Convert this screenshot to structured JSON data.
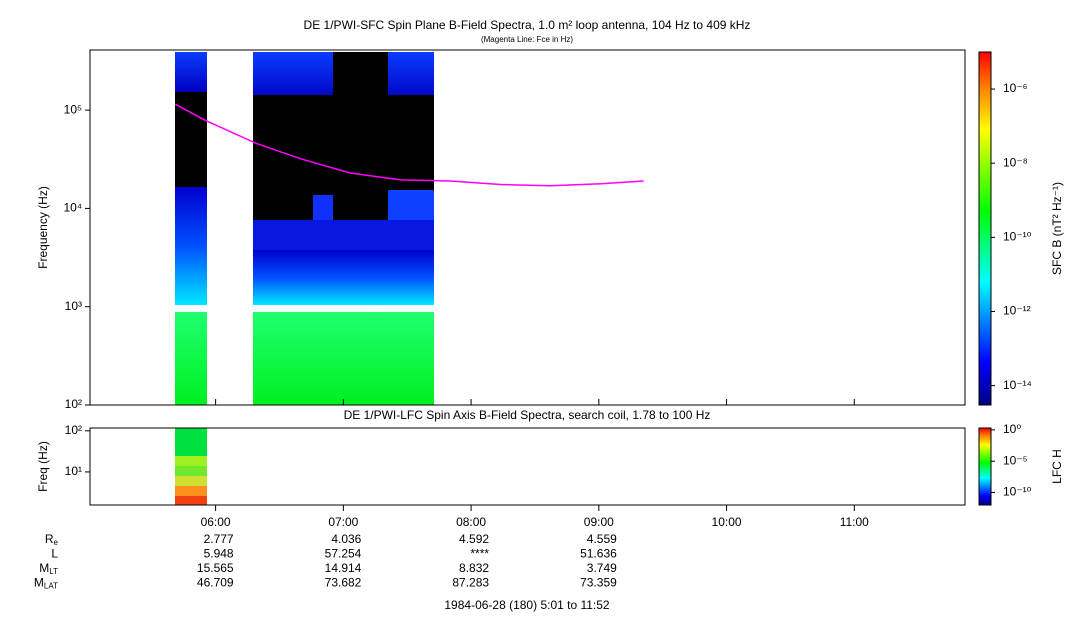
{
  "chart_data": [
    {
      "type": "spectrogram",
      "title": "DE 1/PWI-SFC  Spin Plane B-Field Spectra, 1.0 m² loop antenna, 104 Hz to 409 kHz",
      "subtitle": "(Magenta Line: Fce in Hz)",
      "y_label": "Frequency (Hz)",
      "log_y": true,
      "xlim": [
        301,
        712
      ],
      "ylim": [
        100,
        409000
      ],
      "yticks": [
        {
          "value": 100,
          "label": "10²"
        },
        {
          "value": 1000,
          "label": "10³"
        },
        {
          "value": 10000,
          "label": "10⁴"
        },
        {
          "value": 100000,
          "label": "10⁵"
        }
      ],
      "line": {
        "color": "#ff00ff",
        "x": [
          341,
          355,
          379,
          400,
          423,
          447,
          470,
          494,
          517,
          541,
          561
        ],
        "values": [
          115000,
          79000,
          46000,
          32000,
          23000,
          19500,
          19000,
          17500,
          17000,
          17800,
          19000
        ]
      },
      "colorbar": {
        "label": "SFC B (nT² Hz⁻¹)",
        "lim": [
          3e-15,
          1e-05
        ],
        "ticks": [
          {
            "value": 1e-06,
            "label": "10⁻⁶"
          },
          {
            "value": 1e-08,
            "label": "10⁻⁸"
          },
          {
            "value": 1e-10,
            "label": "10⁻¹⁰"
          },
          {
            "value": 1e-12,
            "label": "10⁻¹²"
          },
          {
            "value": 1e-14,
            "label": "10⁻¹⁴"
          }
        ]
      }
    },
    {
      "type": "spectrogram",
      "title": "DE 1/PWI-LFC  Spin Axis B-Field Spectra, search coil, 1.78 to 100 Hz",
      "y_label": "Freq (Hz)",
      "log_y": true,
      "xlim": [
        301,
        712
      ],
      "ylim": [
        1.57,
        117
      ],
      "yticks": [
        {
          "value": 10,
          "label": "10¹"
        },
        {
          "value": 100,
          "label": "10²"
        }
      ],
      "xticks": [
        {
          "value": 360,
          "label": "06:00"
        },
        {
          "value": 420,
          "label": "07:00"
        },
        {
          "value": 480,
          "label": "08:00"
        },
        {
          "value": 540,
          "label": "09:00"
        },
        {
          "value": 600,
          "label": "10:00"
        },
        {
          "value": 660,
          "label": "11:00"
        }
      ],
      "colorbar": {
        "label": "LFC H",
        "lim": [
          1e-12,
          2
        ],
        "ticks": [
          {
            "value": 1,
            "label": "10⁰"
          },
          {
            "value": 1e-05,
            "label": "10⁻⁵"
          },
          {
            "value": 1e-10,
            "label": "10⁻¹⁰"
          }
        ]
      }
    }
  ],
  "ephemeris": {
    "rows": [
      {
        "label": "R",
        "sub": "e",
        "values": [
          "2.777",
          "4.036",
          "4.592",
          "4.559"
        ]
      },
      {
        "label": "L",
        "values": [
          "5.948",
          "57.254",
          "****",
          "51.636"
        ]
      },
      {
        "label": "M",
        "sub": "LT",
        "values": [
          "15.565",
          "14.914",
          "8.832",
          "3.749"
        ]
      },
      {
        "label": "M",
        "sub": "LAT",
        "values": [
          "46.709",
          "73.682",
          "87.283",
          "73.359"
        ]
      }
    ],
    "footer": "1984-06-28 (180) 5:01 to 11:52"
  }
}
